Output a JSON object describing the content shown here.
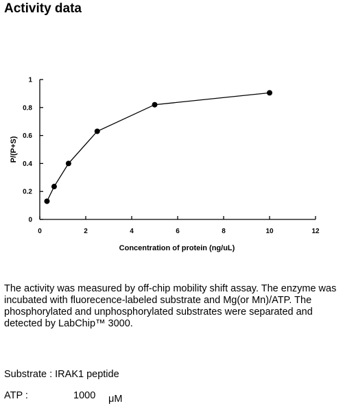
{
  "page": {
    "title": "Activity data",
    "description": "The activity was measured by off-chip mobility shift assay. The enzyme was incubated with fluorecence-labeled  substrate and Mg(or Mn)/ATP. The phosphorylated and unphosphorylated substrates were separated and detected by LabChip™ 3000.",
    "substrate_line": "Substrate : IRAK1 peptide",
    "atp_label": "ATP :",
    "atp_value": "1000",
    "atp_unit": "μM"
  },
  "chart_data": {
    "type": "line",
    "title": "",
    "xlabel": "Concentration of protein (ng/uL)",
    "ylabel": "P/(P+S)",
    "xlim": [
      0,
      12
    ],
    "ylim": [
      0,
      1
    ],
    "xticks": [
      0,
      2,
      4,
      6,
      8,
      10,
      12
    ],
    "yticks": [
      0,
      0.2,
      0.4,
      0.6,
      0.8,
      1
    ],
    "ytick_labels": [
      "0",
      "0.2",
      "0.4",
      "0.6",
      "0.8",
      "1"
    ],
    "grid": false,
    "series": [
      {
        "x": [
          0.3125,
          0.625,
          1.25,
          2.5,
          5,
          10
        ],
        "y": [
          0.13,
          0.235,
          0.4,
          0.63,
          0.82,
          0.905
        ]
      }
    ],
    "colors": {
      "line": "#000000",
      "marker": "#000000",
      "axis": "#000000"
    }
  }
}
